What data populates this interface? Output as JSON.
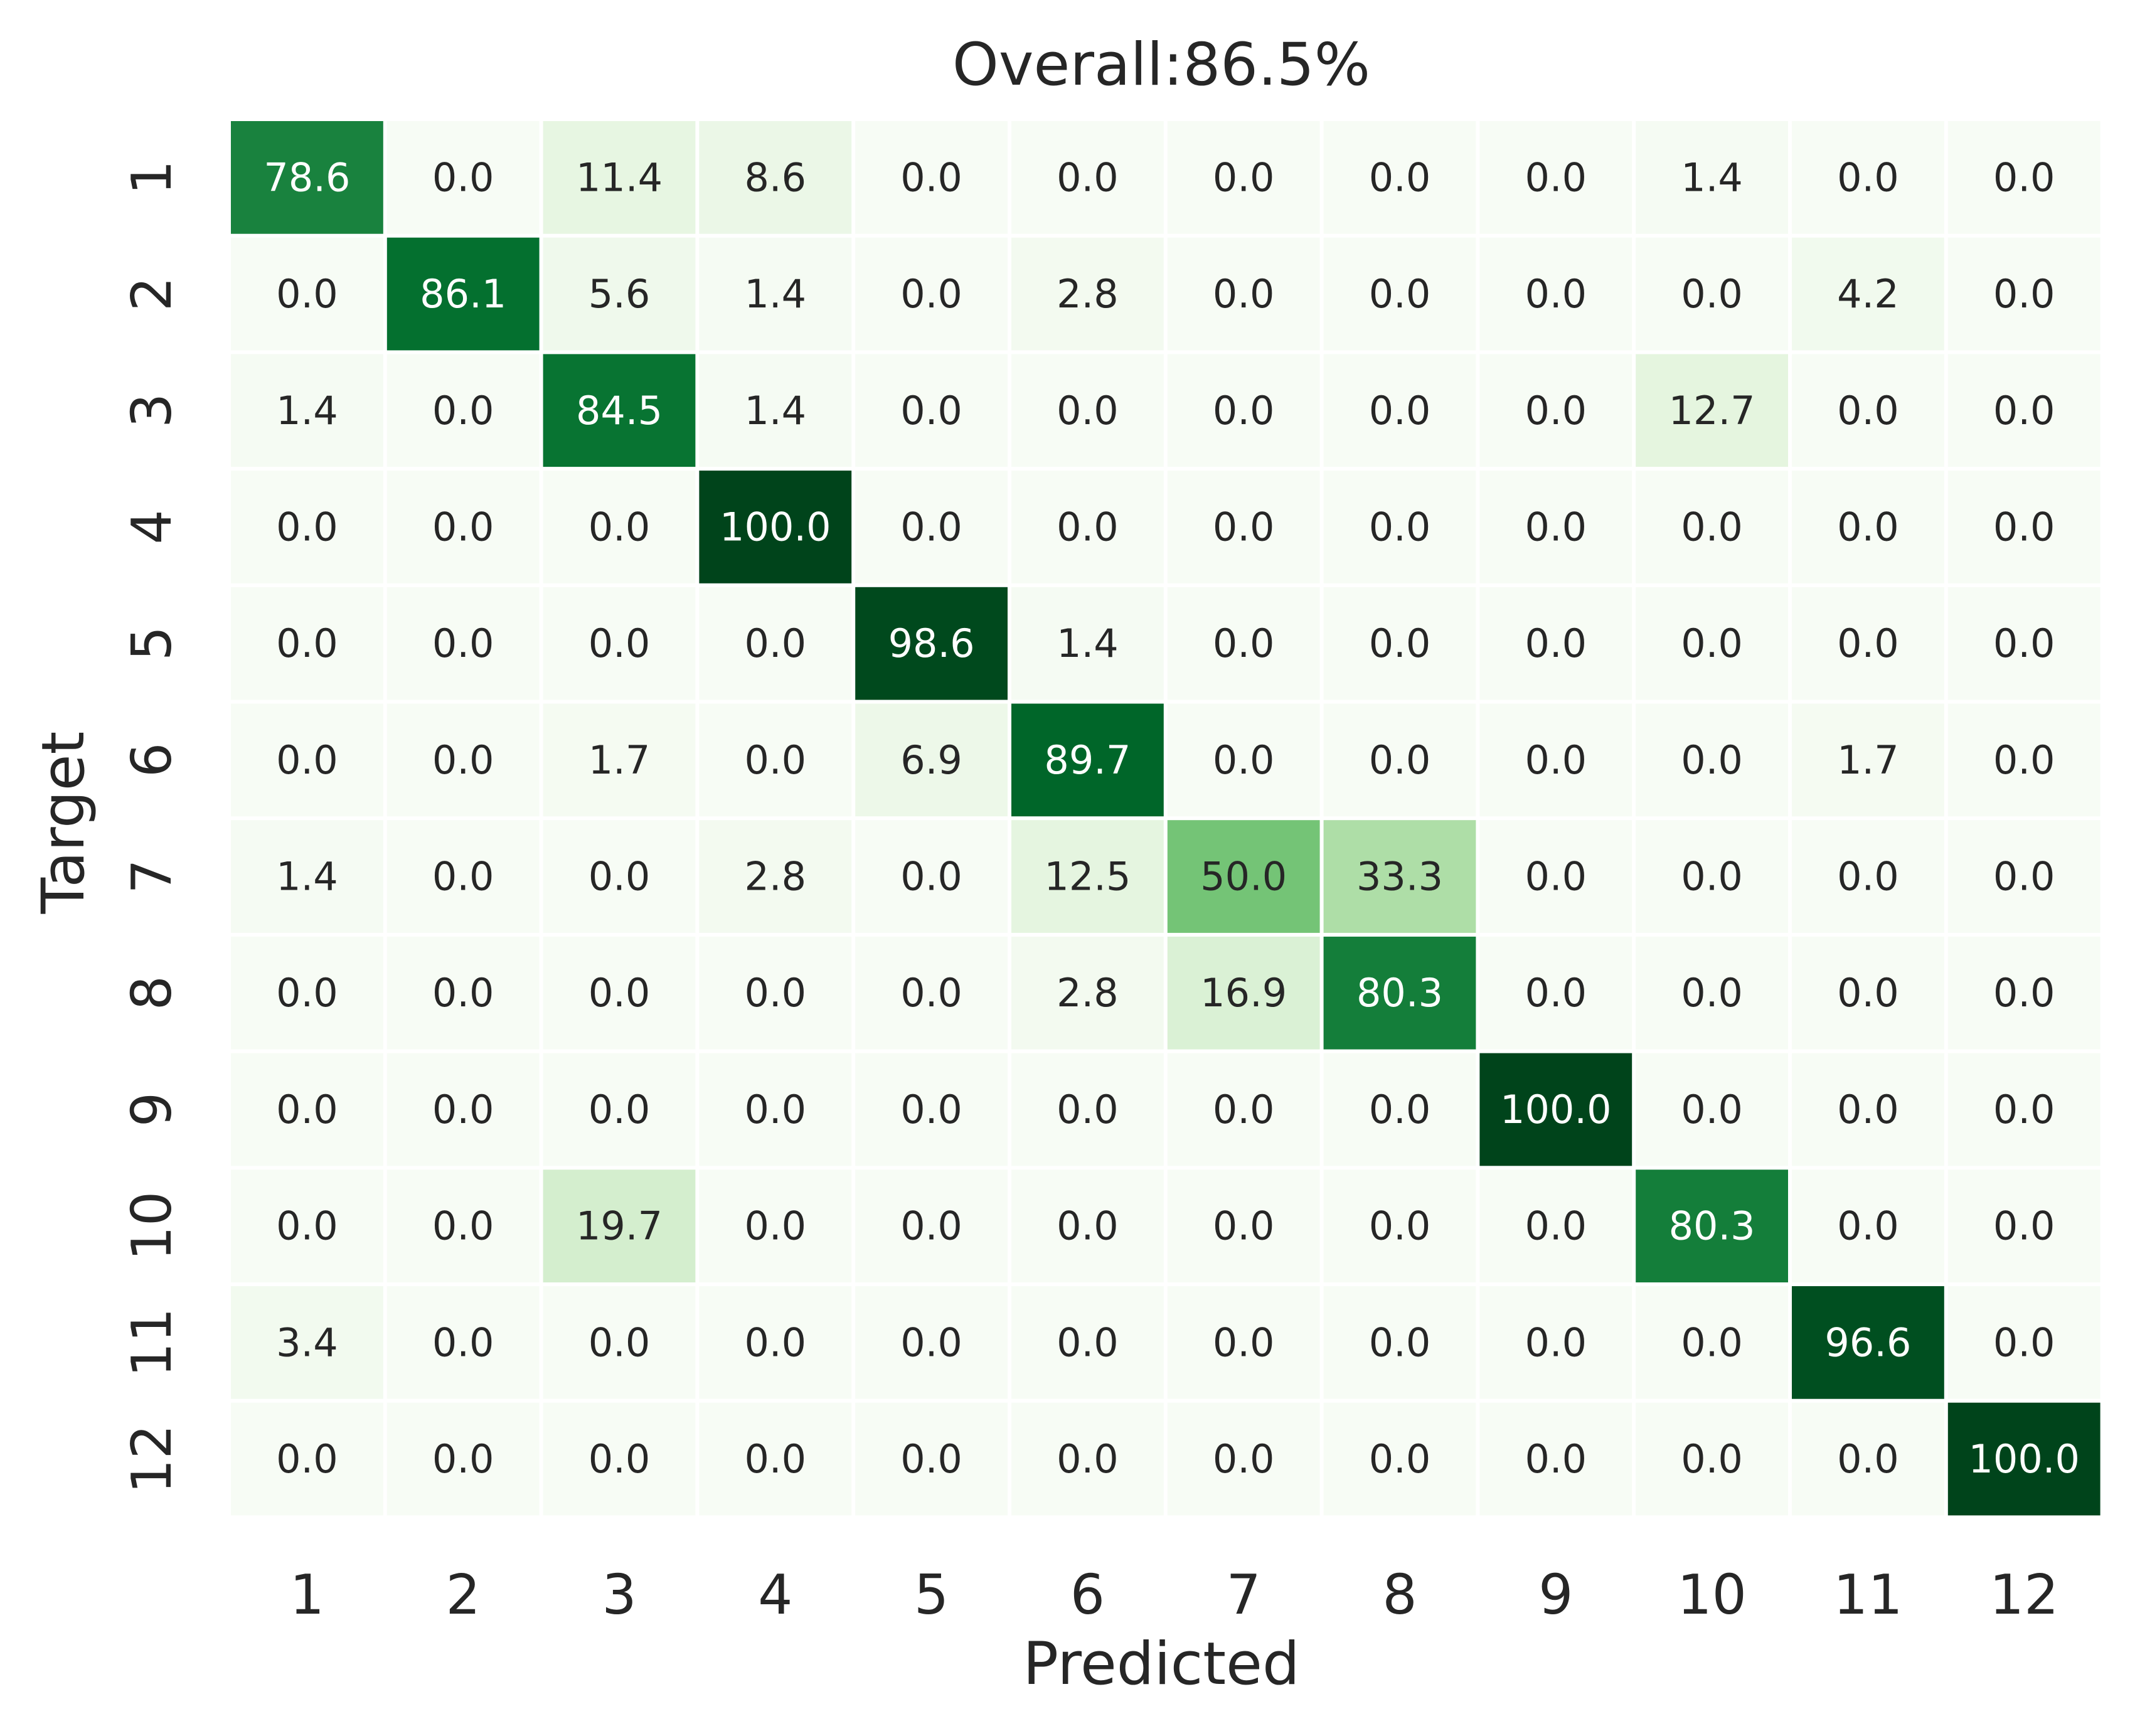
{
  "chart_data": {
    "type": "heatmap",
    "title": "Overall:86.5%",
    "xlabel": "Predicted",
    "ylabel": "Target",
    "x_categories": [
      "1",
      "2",
      "3",
      "4",
      "5",
      "6",
      "7",
      "8",
      "9",
      "10",
      "11",
      "12"
    ],
    "y_categories": [
      "1",
      "2",
      "3",
      "4",
      "5",
      "6",
      "7",
      "8",
      "9",
      "10",
      "11",
      "12"
    ],
    "value_range": [
      0,
      100
    ],
    "colormap": "Greens",
    "colors": {
      "low": "#f7fcf5",
      "high": "#00441b",
      "grid_lines": "#ffffff",
      "text_dark": "#262626",
      "text_light": "#ffffff"
    },
    "values": [
      [
        "78.6",
        "0.0",
        "11.4",
        "8.6",
        "0.0",
        "0.0",
        "0.0",
        "0.0",
        "0.0",
        "1.4",
        "0.0",
        "0.0"
      ],
      [
        "0.0",
        "86.1",
        "5.6",
        "1.4",
        "0.0",
        "2.8",
        "0.0",
        "0.0",
        "0.0",
        "0.0",
        "4.2",
        "0.0"
      ],
      [
        "1.4",
        "0.0",
        "84.5",
        "1.4",
        "0.0",
        "0.0",
        "0.0",
        "0.0",
        "0.0",
        "12.7",
        "0.0",
        "0.0"
      ],
      [
        "0.0",
        "0.0",
        "0.0",
        "100.0",
        "0.0",
        "0.0",
        "0.0",
        "0.0",
        "0.0",
        "0.0",
        "0.0",
        "0.0"
      ],
      [
        "0.0",
        "0.0",
        "0.0",
        "0.0",
        "98.6",
        "1.4",
        "0.0",
        "0.0",
        "0.0",
        "0.0",
        "0.0",
        "0.0"
      ],
      [
        "0.0",
        "0.0",
        "1.7",
        "0.0",
        "6.9",
        "89.7",
        "0.0",
        "0.0",
        "0.0",
        "0.0",
        "1.7",
        "0.0"
      ],
      [
        "1.4",
        "0.0",
        "0.0",
        "2.8",
        "0.0",
        "12.5",
        "50.0",
        "33.3",
        "0.0",
        "0.0",
        "0.0",
        "0.0"
      ],
      [
        "0.0",
        "0.0",
        "0.0",
        "0.0",
        "0.0",
        "2.8",
        "16.9",
        "80.3",
        "0.0",
        "0.0",
        "0.0",
        "0.0"
      ],
      [
        "0.0",
        "0.0",
        "0.0",
        "0.0",
        "0.0",
        "0.0",
        "0.0",
        "0.0",
        "100.0",
        "0.0",
        "0.0",
        "0.0"
      ],
      [
        "0.0",
        "0.0",
        "19.7",
        "0.0",
        "0.0",
        "0.0",
        "0.0",
        "0.0",
        "0.0",
        "80.3",
        "0.0",
        "0.0"
      ],
      [
        "3.4",
        "0.0",
        "0.0",
        "0.0",
        "0.0",
        "0.0",
        "0.0",
        "0.0",
        "0.0",
        "0.0",
        "96.6",
        "0.0"
      ],
      [
        "0.0",
        "0.0",
        "0.0",
        "0.0",
        "0.0",
        "0.0",
        "0.0",
        "0.0",
        "0.0",
        "0.0",
        "0.0",
        "100.0"
      ]
    ],
    "colorbar": false,
    "grid": true
  }
}
